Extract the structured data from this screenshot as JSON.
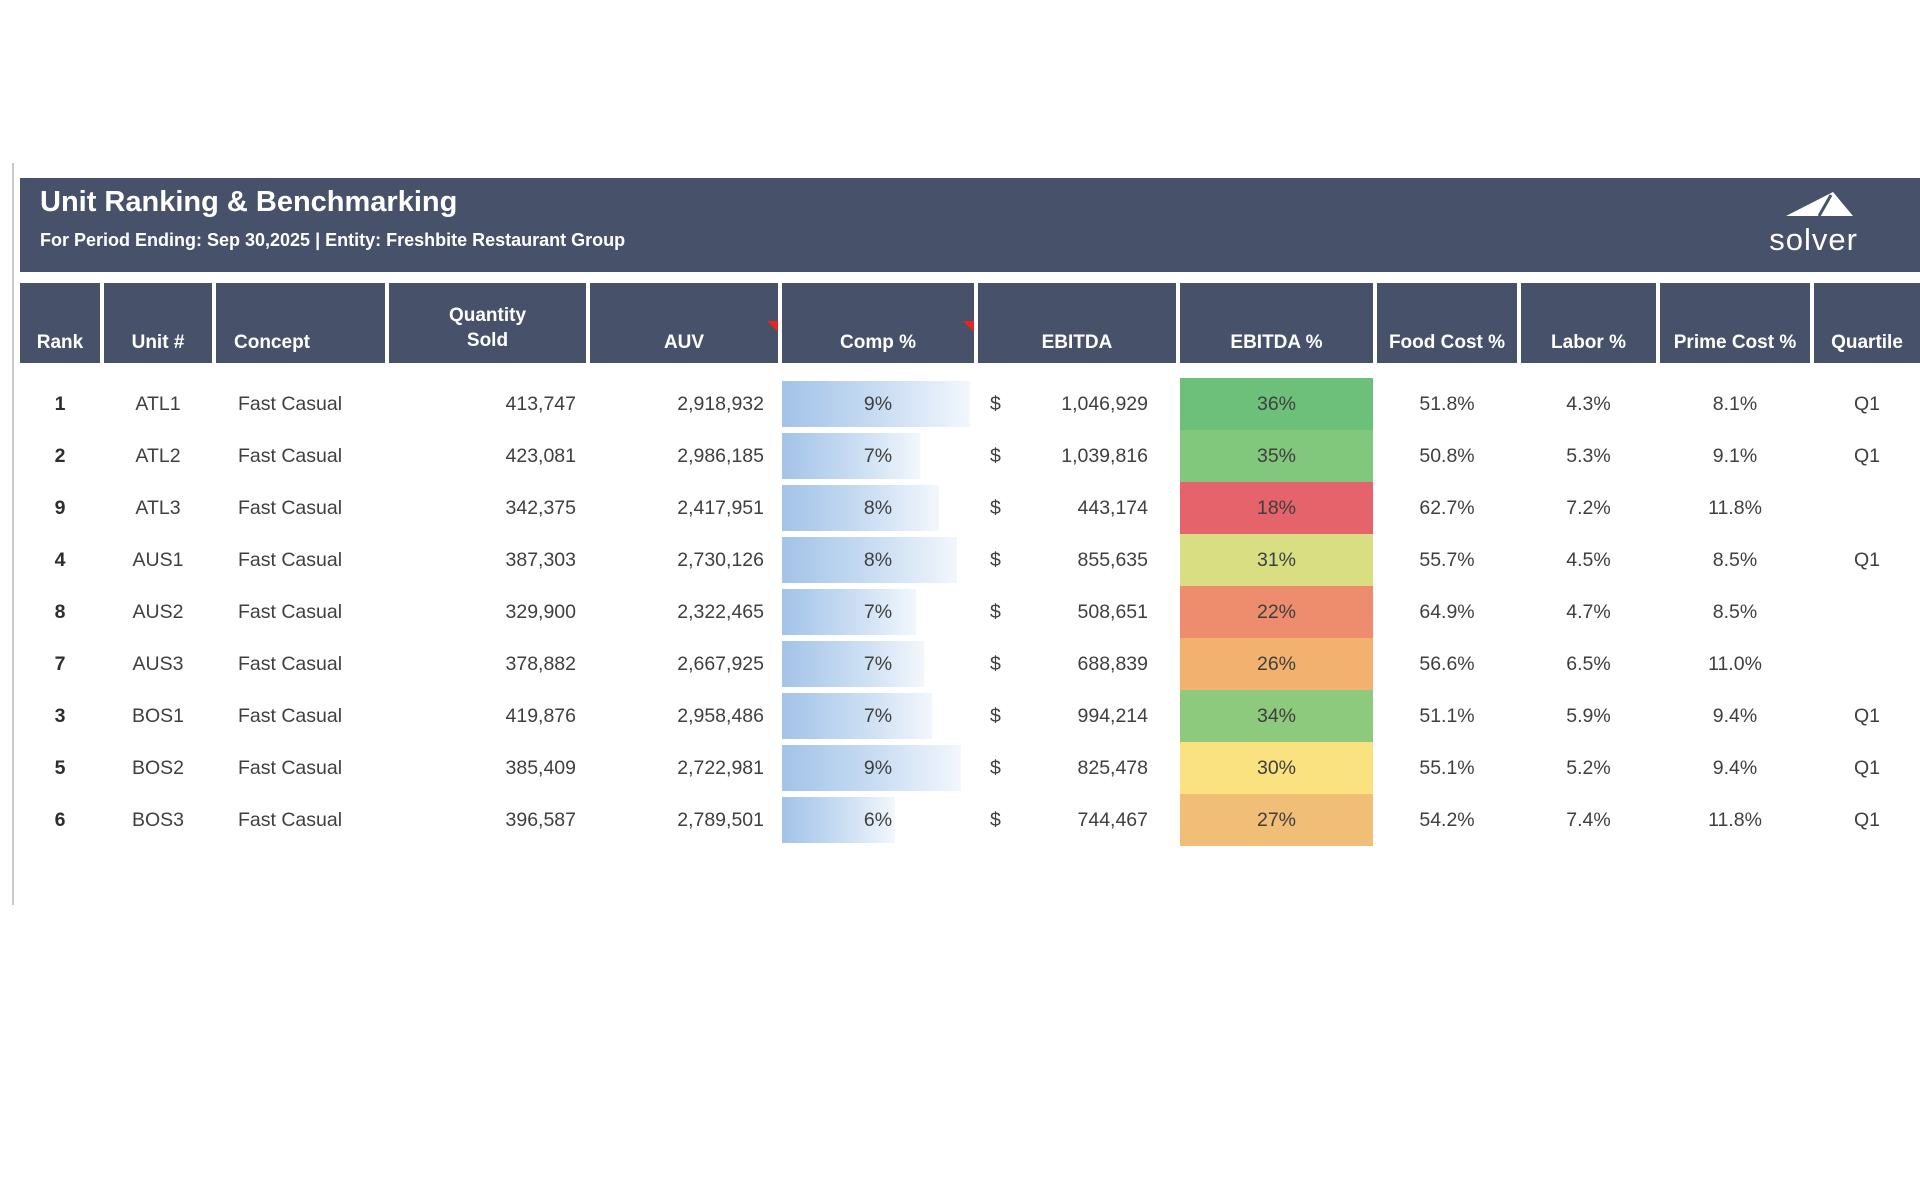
{
  "report": {
    "title": "Unit Ranking & Benchmarking",
    "subtitle": "For Period Ending:  Sep 30,2025 | Entity: Freshbite Restaurant Group",
    "logo_text": "solver"
  },
  "colors": {
    "header_band": "#47516A",
    "comment_indicator": "#E8261D",
    "data_text": "#3f3f3f",
    "comp_bar_start": "#A2C3E8",
    "comp_bar_mid": "#CBDEF3",
    "comp_bar_end": "#F2F7FC"
  },
  "table": {
    "columns": [
      {
        "key": "rank",
        "label": "Rank"
      },
      {
        "key": "unit",
        "label": "Unit #"
      },
      {
        "key": "concept",
        "label": "Concept"
      },
      {
        "key": "qty",
        "label": "Quantity Sold",
        "lines": [
          "Quantity",
          "Sold"
        ]
      },
      {
        "key": "auv",
        "label": "AUV",
        "has_note": true
      },
      {
        "key": "comp",
        "label": "Comp %",
        "has_note": true
      },
      {
        "key": "ebitda",
        "label": "EBITDA"
      },
      {
        "key": "ebitda_pct",
        "label": "EBITDA %"
      },
      {
        "key": "food",
        "label": "Food Cost %"
      },
      {
        "key": "labor",
        "label": "Labor %"
      },
      {
        "key": "prime",
        "label": "Prime Cost %"
      },
      {
        "key": "quartile",
        "label": "Quartile"
      }
    ],
    "rows": [
      {
        "rank": "1",
        "unit": "ATL1",
        "concept": "Fast Casual",
        "qty": "413,747",
        "auv": "2,918,932",
        "comp": "9%",
        "comp_bar_pct": 98,
        "ebitda_currency": "$",
        "ebitda": "1,046,929",
        "ebitda_pct": "36%",
        "ebitda_pct_color": "#6DC07A",
        "food": "51.8%",
        "labor": "4.3%",
        "prime": "8.1%",
        "quartile": "Q1"
      },
      {
        "rank": "2",
        "unit": "ATL2",
        "concept": "Fast Casual",
        "qty": "423,081",
        "auv": "2,986,185",
        "comp": "7%",
        "comp_bar_pct": 72,
        "ebitda_currency": "$",
        "ebitda": "1,039,816",
        "ebitda_pct": "35%",
        "ebitda_pct_color": "#81C77C",
        "food": "50.8%",
        "labor": "5.3%",
        "prime": "9.1%",
        "quartile": "Q1"
      },
      {
        "rank": "9",
        "unit": "ATL3",
        "concept": "Fast Casual",
        "qty": "342,375",
        "auv": "2,417,951",
        "comp": "8%",
        "comp_bar_pct": 82,
        "ebitda_currency": "$",
        "ebitda": "443,174",
        "ebitda_pct": "18%",
        "ebitda_pct_color": "#E5636A",
        "food": "62.7%",
        "labor": "7.2%",
        "prime": "11.8%",
        "quartile": ""
      },
      {
        "rank": "4",
        "unit": "AUS1",
        "concept": "Fast Casual",
        "qty": "387,303",
        "auv": "2,730,126",
        "comp": "8%",
        "comp_bar_pct": 91,
        "ebitda_currency": "$",
        "ebitda": "855,635",
        "ebitda_pct": "31%",
        "ebitda_pct_color": "#D9DE82",
        "food": "55.7%",
        "labor": "4.5%",
        "prime": "8.5%",
        "quartile": "Q1"
      },
      {
        "rank": "8",
        "unit": "AUS2",
        "concept": "Fast Casual",
        "qty": "329,900",
        "auv": "2,322,465",
        "comp": "7%",
        "comp_bar_pct": 70,
        "ebitda_currency": "$",
        "ebitda": "508,651",
        "ebitda_pct": "22%",
        "ebitda_pct_color": "#EE8C6E",
        "food": "64.9%",
        "labor": "4.7%",
        "prime": "8.5%",
        "quartile": ""
      },
      {
        "rank": "7",
        "unit": "AUS3",
        "concept": "Fast Casual",
        "qty": "378,882",
        "auv": "2,667,925",
        "comp": "7%",
        "comp_bar_pct": 74,
        "ebitda_currency": "$",
        "ebitda": "688,839",
        "ebitda_pct": "26%",
        "ebitda_pct_color": "#F2B16E",
        "food": "56.6%",
        "labor": "6.5%",
        "prime": "11.0%",
        "quartile": ""
      },
      {
        "rank": "3",
        "unit": "BOS1",
        "concept": "Fast Casual",
        "qty": "419,876",
        "auv": "2,958,486",
        "comp": "7%",
        "comp_bar_pct": 78,
        "ebitda_currency": "$",
        "ebitda": "994,214",
        "ebitda_pct": "34%",
        "ebitda_pct_color": "#8DCA7D",
        "food": "51.1%",
        "labor": "5.9%",
        "prime": "9.4%",
        "quartile": "Q1"
      },
      {
        "rank": "5",
        "unit": "BOS2",
        "concept": "Fast Casual",
        "qty": "385,409",
        "auv": "2,722,981",
        "comp": "9%",
        "comp_bar_pct": 93,
        "ebitda_currency": "$",
        "ebitda": "825,478",
        "ebitda_pct": "30%",
        "ebitda_pct_color": "#F9E27F",
        "food": "55.1%",
        "labor": "5.2%",
        "prime": "9.4%",
        "quartile": "Q1"
      },
      {
        "rank": "6",
        "unit": "BOS3",
        "concept": "Fast Casual",
        "qty": "396,587",
        "auv": "2,789,501",
        "comp": "6%",
        "comp_bar_pct": 59,
        "ebitda_currency": "$",
        "ebitda": "744,467",
        "ebitda_pct": "27%",
        "ebitda_pct_color": "#F0BE76",
        "food": "54.2%",
        "labor": "7.4%",
        "prime": "11.8%",
        "quartile": "Q1"
      }
    ]
  }
}
